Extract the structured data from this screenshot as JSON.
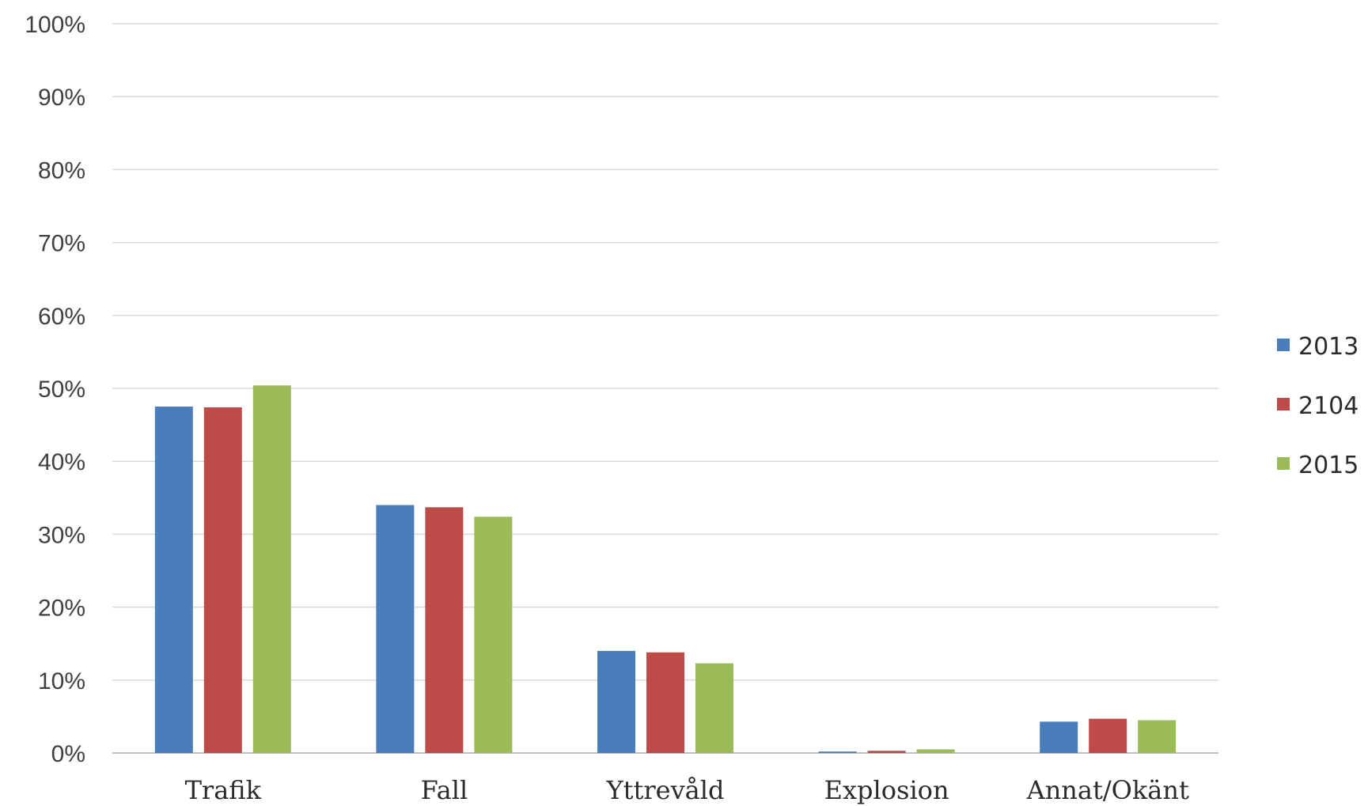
{
  "chart_data": {
    "type": "bar",
    "title": "",
    "xlabel": "",
    "ylabel": "",
    "categories": [
      "Trafik",
      "Fall",
      "Yttrevåld",
      "Explosion",
      "Annat/Okänt"
    ],
    "series": [
      {
        "name": "2013",
        "color": "#4a7ebb",
        "values": [
          47.5,
          34,
          14,
          0.2,
          4.3
        ]
      },
      {
        "name": "2104",
        "color": "#be4b48",
        "values": [
          47.4,
          33.7,
          13.8,
          0.3,
          4.7
        ]
      },
      {
        "name": "2015",
        "color": "#9bbb59",
        "values": [
          50.4,
          32.4,
          12.3,
          0.5,
          4.5
        ]
      }
    ],
    "yticks": [
      "0%",
      "10%",
      "20%",
      "30%",
      "40%",
      "50%",
      "60%",
      "70%",
      "80%",
      "90%",
      "100%"
    ],
    "ylim": [
      0,
      100
    ],
    "grid": true,
    "legend_position": "right"
  }
}
